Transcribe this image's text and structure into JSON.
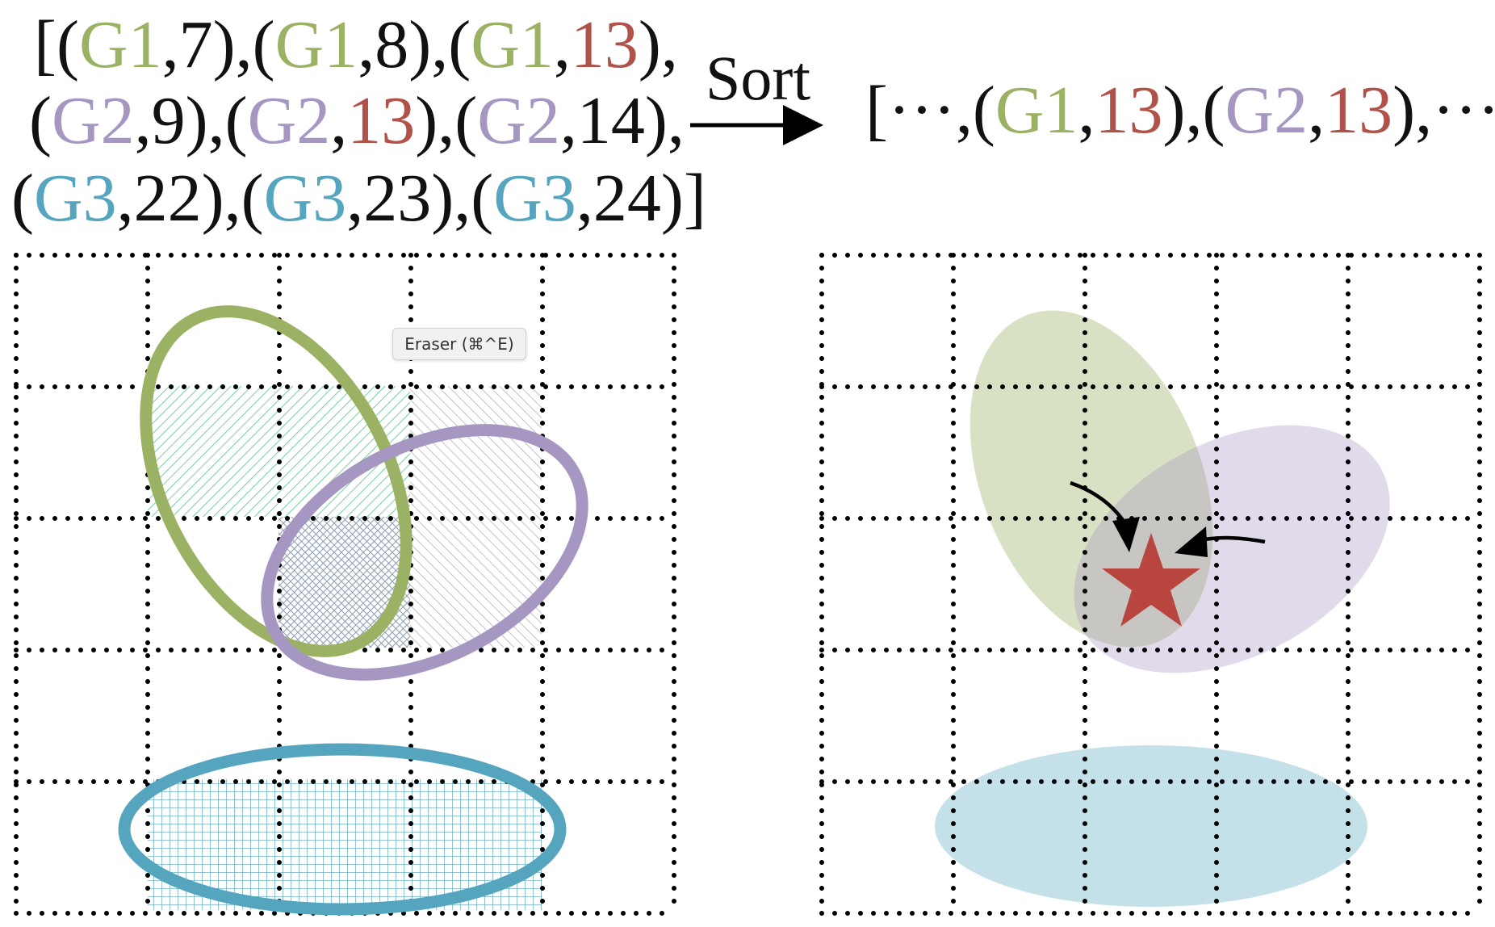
{
  "formula": {
    "line1": [
      {
        "t": "[(",
        "c": ""
      },
      {
        "t": "G1",
        "c": "g1"
      },
      {
        "t": ",7),(",
        "c": ""
      },
      {
        "t": "G1",
        "c": "g1"
      },
      {
        "t": ",8),(",
        "c": ""
      },
      {
        "t": "G1",
        "c": "g1"
      },
      {
        "t": ",",
        "c": ""
      },
      {
        "t": "13",
        "c": "red"
      },
      {
        "t": "),",
        "c": ""
      }
    ],
    "line2": [
      {
        "t": "(",
        "c": ""
      },
      {
        "t": "G2",
        "c": "g2"
      },
      {
        "t": ",9),(",
        "c": ""
      },
      {
        "t": "G2",
        "c": "g2"
      },
      {
        "t": ",",
        "c": ""
      },
      {
        "t": "13",
        "c": "red"
      },
      {
        "t": "),(",
        "c": ""
      },
      {
        "t": "G2",
        "c": "g2"
      },
      {
        "t": ",14),",
        "c": ""
      }
    ],
    "line3": [
      {
        "t": "(",
        "c": ""
      },
      {
        "t": "G3",
        "c": "g3"
      },
      {
        "t": ",22),(",
        "c": ""
      },
      {
        "t": "G3",
        "c": "g3"
      },
      {
        "t": ",23),(",
        "c": ""
      },
      {
        "t": "G3",
        "c": "g3"
      },
      {
        "t": ",24)]",
        "c": ""
      }
    ]
  },
  "arrow_label": "Sort",
  "result": [
    {
      "t": "[···,(",
      "c": ""
    },
    {
      "t": "G1",
      "c": "g1"
    },
    {
      "t": ",",
      "c": ""
    },
    {
      "t": "13",
      "c": "red"
    },
    {
      "t": "),(",
      "c": ""
    },
    {
      "t": "G2",
      "c": "g2"
    },
    {
      "t": ",",
      "c": ""
    },
    {
      "t": "13",
      "c": "red"
    },
    {
      "t": "),···]",
      "c": ""
    }
  ],
  "tooltip": "Eraser (⌘^E)",
  "grid": {
    "rows": 5,
    "cols": 5
  },
  "colors": {
    "g1": "#9bb163",
    "g2": "#a596c2",
    "g3": "#55a5bf",
    "highlight": "#b0524a",
    "hatch_green": "#52c48a",
    "hatch_gray": "#a8a8b4"
  },
  "icons": [
    "star-icon",
    "arrow-right-icon",
    "curved-arrow-icon"
  ]
}
